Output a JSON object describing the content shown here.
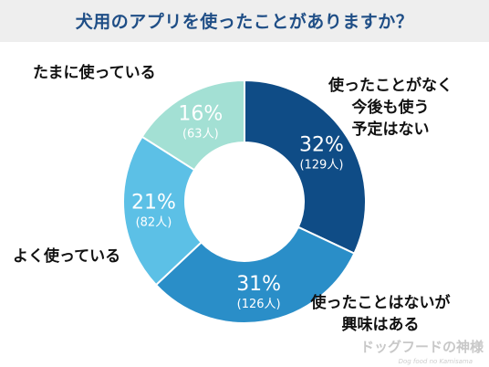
{
  "header": {
    "title": "犬用のアプリを使ったことがありますか？"
  },
  "chart_data": {
    "type": "pie",
    "donut": true,
    "title": "犬用のアプリを使ったことがありますか？",
    "start": "top, clockwise",
    "slices": [
      {
        "label_lines": [
          "使ったことがなく",
          "今後も使う",
          "予定はない"
        ],
        "percent": 32,
        "percent_label": "32%",
        "count_label": "(129人)",
        "color": "#0f4c86",
        "text_color": "#ffffff"
      },
      {
        "label_lines": [
          "使ったことはないが",
          "興味はある"
        ],
        "percent": 31,
        "percent_label": "31%",
        "count_label": "(126人)",
        "color": "#2a8ec8",
        "text_color": "#ffffff"
      },
      {
        "label_lines": [
          "よく使っている"
        ],
        "percent": 21,
        "percent_label": "21%",
        "count_label": "(82人)",
        "color": "#5cc0e6",
        "text_color": "#ffffff"
      },
      {
        "label_lines": [
          "たまに使っている"
        ],
        "percent": 16,
        "percent_label": "16%",
        "count_label": "(63人)",
        "color": "#a3e0d4",
        "text_color": "#ffffff"
      }
    ]
  },
  "watermark": {
    "main": "ドッグフードの神様",
    "sub": "Dog food no Kamisama"
  }
}
